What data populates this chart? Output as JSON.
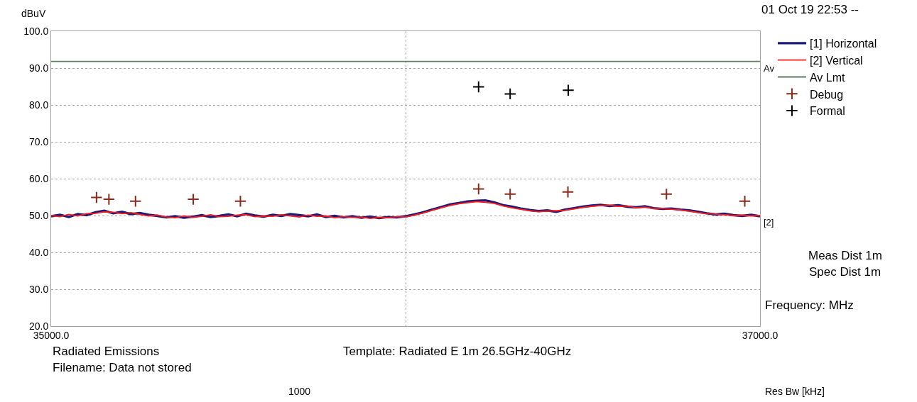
{
  "chart_data": {
    "type": "line",
    "ylabel": "dBuV",
    "xlabel": "Frequency: MHz",
    "x": [
      35000,
      35025,
      35050,
      35075,
      35100,
      35125,
      35150,
      35175,
      35200,
      35225,
      35250,
      35275,
      35300,
      35325,
      35350,
      35375,
      35400,
      35425,
      35450,
      35475,
      35500,
      35525,
      35550,
      35575,
      35600,
      35625,
      35650,
      35675,
      35700,
      35725,
      35750,
      35775,
      35800,
      35825,
      35850,
      35875,
      35900,
      35925,
      35950,
      35975,
      36000,
      36025,
      36050,
      36075,
      36100,
      36125,
      36150,
      36175,
      36200,
      36225,
      36250,
      36275,
      36300,
      36325,
      36350,
      36375,
      36400,
      36425,
      36450,
      36475,
      36500,
      36525,
      36550,
      36575,
      36600,
      36625,
      36650,
      36675,
      36700,
      36725,
      36750,
      36775,
      36800,
      36825,
      36850,
      36875,
      36900,
      36925,
      36950,
      36975,
      37000
    ],
    "series": [
      {
        "name": "[1] Horizontal",
        "color": "#1a1a7a",
        "marker": "none",
        "values": [
          49.8,
          50.2,
          49.6,
          50.4,
          50.1,
          50.9,
          51.3,
          50.6,
          51.0,
          50.4,
          50.7,
          50.2,
          49.9,
          49.5,
          49.8,
          49.4,
          49.7,
          50.1,
          49.6,
          49.9,
          50.3,
          49.8,
          50.5,
          50.0,
          49.7,
          50.2,
          49.9,
          50.4,
          50.1,
          49.8,
          50.3,
          49.6,
          49.9,
          49.5,
          49.8,
          49.4,
          49.7,
          49.3,
          49.6,
          49.5,
          49.8,
          50.3,
          50.9,
          51.6,
          52.3,
          53.0,
          53.4,
          53.8,
          54.0,
          54.1,
          53.6,
          52.8,
          52.4,
          51.9,
          51.5,
          51.2,
          51.4,
          51.0,
          51.6,
          52.0,
          52.4,
          52.7,
          52.9,
          52.6,
          52.8,
          52.4,
          52.2,
          52.5,
          52.0,
          51.8,
          51.9,
          51.6,
          51.4,
          51.0,
          50.6,
          50.3,
          50.5,
          50.1,
          49.9,
          50.2,
          49.8
        ]
      },
      {
        "name": "[2] Vertical",
        "color": "#ff1a1a",
        "marker": "none",
        "values": [
          50.0,
          49.7,
          50.3,
          49.9,
          50.5,
          50.6,
          51.0,
          50.9,
          50.5,
          50.8,
          50.3,
          49.9,
          50.1,
          49.6,
          49.4,
          49.9,
          49.5,
          49.8,
          50.2,
          49.7,
          49.8,
          50.1,
          50.2,
          49.7,
          49.9,
          49.8,
          50.2,
          49.9,
          49.6,
          50.1,
          49.8,
          49.9,
          49.4,
          49.7,
          49.5,
          49.6,
          49.2,
          49.5,
          49.4,
          49.7,
          49.6,
          50.1,
          50.7,
          51.4,
          52.1,
          52.7,
          53.2,
          53.5,
          53.8,
          53.6,
          53.3,
          52.6,
          52.1,
          51.7,
          51.3,
          51.1,
          51.2,
          51.3,
          51.4,
          51.8,
          52.2,
          52.5,
          52.7,
          52.8,
          52.5,
          52.6,
          52.1,
          52.3,
          51.9,
          51.9,
          51.7,
          51.5,
          51.2,
          50.8,
          50.5,
          50.4,
          50.2,
          50.0,
          50.1,
          49.9,
          50.0
        ]
      },
      {
        "name": "Av Lmt",
        "color": "#5f7f5f",
        "marker": "none",
        "x": [
          35000,
          37000
        ],
        "values": [
          91.8,
          91.8
        ]
      },
      {
        "name": "Debug",
        "type": "scatter",
        "color": "#8b2a1a",
        "marker": "cross",
        "x": [
          35128,
          35163,
          35238,
          35401,
          35534,
          36206,
          36295,
          36458,
          36736,
          36957
        ],
        "values": [
          54.9,
          54.4,
          53.9,
          54.4,
          53.9,
          57.2,
          55.8,
          56.4,
          55.8,
          53.9
        ]
      },
      {
        "name": "Formal",
        "type": "scatter",
        "color": "#000000",
        "marker": "cross",
        "x": [
          36206,
          36295,
          36459
        ],
        "values": [
          84.9,
          83.0,
          84.0
        ]
      }
    ],
    "xlim": [
      35000,
      37000
    ],
    "xticks": [
      {
        "value": 35000,
        "label": "35000.0"
      },
      {
        "value": 36000,
        "label": null
      },
      {
        "value": 37000,
        "label": "37000.0"
      }
    ],
    "ylim": [
      20,
      100
    ],
    "yticks": [
      {
        "value": 20,
        "label": "20.0"
      },
      {
        "value": 30,
        "label": "30.0"
      },
      {
        "value": 40,
        "label": "40.0"
      },
      {
        "value": 50,
        "label": "50.0"
      },
      {
        "value": 60,
        "label": "60.0"
      },
      {
        "value": 70,
        "label": "70.0"
      },
      {
        "value": 80,
        "label": "80.0"
      },
      {
        "value": 90,
        "label": "90.0"
      },
      {
        "value": 100,
        "label": "100.0"
      }
    ],
    "grid": true,
    "legend": "top right",
    "annotations": [
      {
        "text": "Av",
        "x": 37000,
        "y": 91.8
      },
      {
        "text": "[2]",
        "x": 37000,
        "y": 50
      },
      "01 Oct 19 22:53 --",
      "Meas Dist 1m",
      "Spec Dist 1m",
      "Radiated Emissions",
      "Filename: Data not stored",
      "Template: Radiated E 1m 26.5GHz-40GHz",
      "1000",
      "Res Bw [kHz]"
    ]
  }
}
